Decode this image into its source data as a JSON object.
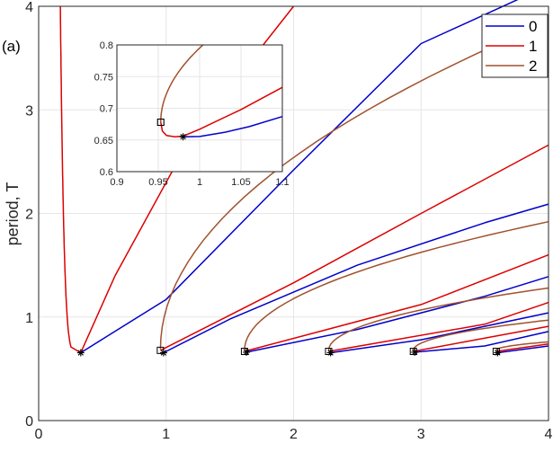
{
  "panel_label": "(a)",
  "chart_data": [
    {
      "type": "line",
      "xlabel": "",
      "ylabel": "period, T",
      "xlim": [
        0,
        4
      ],
      "ylim": [
        0,
        4
      ],
      "grid": true,
      "legend_position": "top-right",
      "xticks": [
        "0",
        "1",
        "2",
        "3",
        "4"
      ],
      "yticks": [
        "0",
        "1",
        "2",
        "3",
        "4"
      ],
      "colors": {
        "0": "#0000cc",
        "1": "#dd0000",
        "2": "#a0522d"
      },
      "series": [
        {
          "name": "0",
          "color": "#0000cc",
          "branches": [
            {
              "k0": 0.33,
              "tip": [
                0.33,
                0.655
              ],
              "sq": [
                0.33,
                0.655
              ],
              "lo": [
                [
                  1.0,
                  1.17
                ],
                [
                  2.0,
                  2.42
                ],
                [
                  3.0,
                  3.64
                ],
                [
                  4.0,
                  4.2
                ]
              ]
            },
            {
              "k0": 0.98,
              "tip": [
                0.98,
                0.655
              ],
              "sq": [
                0.955,
                0.678
              ],
              "lo": [
                [
                  1.5,
                  0.98
                ],
                [
                  2.5,
                  1.5
                ],
                [
                  3.5,
                  1.91
                ],
                [
                  4.0,
                  2.09
                ]
              ]
            },
            {
              "k0": 1.63,
              "tip": [
                1.63,
                0.66
              ],
              "sq": [
                1.615,
                0.668
              ],
              "lo": [
                [
                  2.5,
                  0.88
                ],
                [
                  3.5,
                  1.2
                ],
                [
                  4.0,
                  1.39
                ]
              ]
            },
            {
              "k0": 2.29,
              "tip": [
                2.29,
                0.655
              ],
              "sq": [
                2.275,
                0.668
              ],
              "lo": [
                [
                  3.0,
                  0.78
                ],
                [
                  4.0,
                  1.04
                ]
              ]
            },
            {
              "k0": 2.95,
              "tip": [
                2.95,
                0.66
              ],
              "sq": [
                2.94,
                0.668
              ],
              "lo": [
                [
                  3.5,
                  0.72
                ],
                [
                  4.0,
                  0.86
                ]
              ]
            },
            {
              "k0": 3.6,
              "tip": [
                3.6,
                0.655
              ],
              "sq": [
                3.59,
                0.668
              ],
              "lo": [
                [
                  4.0,
                  0.72
                ]
              ]
            }
          ]
        },
        {
          "name": "1",
          "color": "#dd0000"
        },
        {
          "name": "2",
          "color": "#a0522d"
        }
      ]
    },
    {
      "type": "line",
      "inset": true,
      "xlim": [
        0.9,
        1.1
      ],
      "ylim": [
        0.6,
        0.8
      ],
      "xticks": [
        "0.9",
        "0.95",
        "1",
        "1.05",
        "1.1"
      ],
      "yticks": [
        "0.6",
        "0.65",
        "0.7",
        "0.75",
        "0.8"
      ],
      "grid": true,
      "markers": {
        "square": [
          0.953,
          0.678
        ],
        "star": [
          0.98,
          0.655
        ]
      }
    }
  ],
  "legend": [
    "0",
    "1",
    "2"
  ]
}
